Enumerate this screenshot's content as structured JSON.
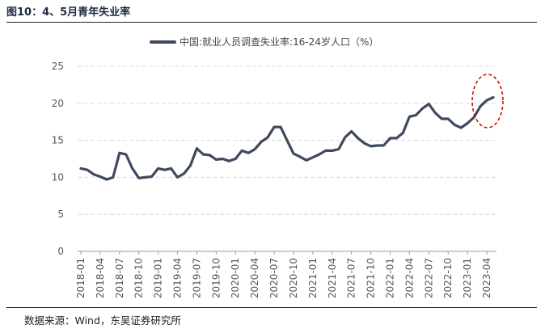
{
  "figure_title": "图10：4、5月青年失业率",
  "source_note": "数据来源：Wind，东吴证券研究所",
  "colors": {
    "series": "#3f4a5e",
    "grid": "#d9d9d9",
    "highlight": "#cc0000"
  },
  "chart_data": {
    "type": "line",
    "title": "",
    "xlabel": "",
    "ylabel": "",
    "ylim": [
      0,
      25
    ],
    "yticks": [
      0,
      5,
      10,
      15,
      20,
      25
    ],
    "grid": "horizontal dashed",
    "legend_placement": "top-center",
    "xtick_labels": [
      "2018-01",
      "2018-04",
      "2018-07",
      "2018-10",
      "2019-01",
      "2019-04",
      "2019-07",
      "2019-10",
      "2020-01",
      "2020-04",
      "2020-07",
      "2020-10",
      "2021-01",
      "2021-04",
      "2021-07",
      "2021-10",
      "2022-01",
      "2022-04",
      "2022-07",
      "2022-10",
      "2023-01",
      "2023-04"
    ],
    "categories": [
      "2018-01",
      "2018-02",
      "2018-03",
      "2018-04",
      "2018-05",
      "2018-06",
      "2018-07",
      "2018-08",
      "2018-09",
      "2018-10",
      "2018-11",
      "2018-12",
      "2019-01",
      "2019-02",
      "2019-03",
      "2019-04",
      "2019-05",
      "2019-06",
      "2019-07",
      "2019-08",
      "2019-09",
      "2019-10",
      "2019-11",
      "2019-12",
      "2020-01",
      "2020-02",
      "2020-03",
      "2020-04",
      "2020-05",
      "2020-06",
      "2020-07",
      "2020-08",
      "2020-09",
      "2020-10",
      "2020-11",
      "2020-12",
      "2021-01",
      "2021-02",
      "2021-03",
      "2021-04",
      "2021-05",
      "2021-06",
      "2021-07",
      "2021-08",
      "2021-09",
      "2021-10",
      "2021-11",
      "2021-12",
      "2022-01",
      "2022-02",
      "2022-03",
      "2022-04",
      "2022-05",
      "2022-06",
      "2022-07",
      "2022-08",
      "2022-09",
      "2022-10",
      "2022-11",
      "2022-12",
      "2023-01",
      "2023-02",
      "2023-03",
      "2023-04",
      "2023-05"
    ],
    "series": [
      {
        "name": "中国:就业人员调查失业率:16-24岁人口（%）",
        "values": [
          11.2,
          11.0,
          10.4,
          10.1,
          9.7,
          10.0,
          13.3,
          13.1,
          11.2,
          9.9,
          10.0,
          10.1,
          11.2,
          11.0,
          11.2,
          10.0,
          10.5,
          11.6,
          13.9,
          13.1,
          13.0,
          12.4,
          12.5,
          12.2,
          12.5,
          13.6,
          13.3,
          13.8,
          14.8,
          15.4,
          16.8,
          16.8,
          15.0,
          13.2,
          12.8,
          12.3,
          12.7,
          13.1,
          13.6,
          13.6,
          13.8,
          15.4,
          16.2,
          15.3,
          14.6,
          14.2,
          14.3,
          14.3,
          15.3,
          15.3,
          16.0,
          18.2,
          18.4,
          19.3,
          19.9,
          18.7,
          17.9,
          17.9,
          17.1,
          16.7,
          17.3,
          18.1,
          19.6,
          20.4,
          20.8
        ]
      }
    ],
    "annotations": [
      {
        "type": "ellipse",
        "target": "2023-03 to 2023-05",
        "style": "red dashed"
      }
    ]
  }
}
